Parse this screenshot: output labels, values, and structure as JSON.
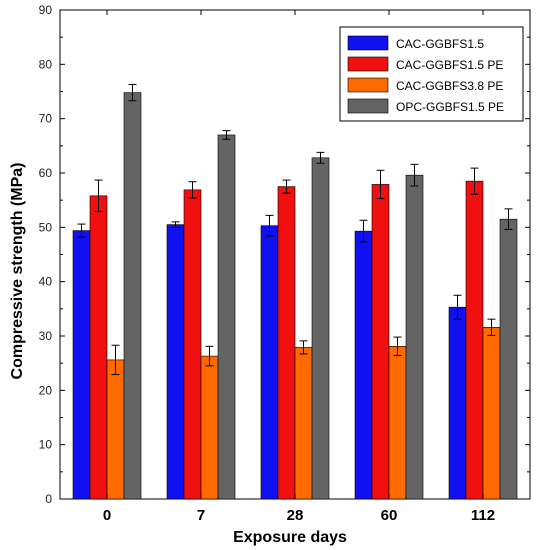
{
  "chart_data": {
    "type": "bar",
    "xlabel": "Exposure days",
    "ylabel": "Compressive strength (MPa)",
    "categories": [
      "0",
      "7",
      "28",
      "60",
      "112"
    ],
    "ylim": [
      0,
      90
    ],
    "yticks": [
      "0",
      "10",
      "20",
      "30",
      "40",
      "50",
      "60",
      "70",
      "80",
      "90"
    ],
    "grid": false,
    "legend_position": "top-right",
    "series": [
      {
        "name": "CAC-GGBFS1.5",
        "color": "#1010f0",
        "values": [
          49.4,
          50.5,
          50.3,
          49.3,
          35.3
        ],
        "errors": [
          1.2,
          0.5,
          1.9,
          2.0,
          2.2
        ]
      },
      {
        "name": "CAC-GGBFS1.5 PE",
        "color": "#f01010",
        "values": [
          55.8,
          56.9,
          57.5,
          57.9,
          58.5
        ],
        "errors": [
          2.9,
          1.5,
          1.2,
          2.6,
          2.4
        ]
      },
      {
        "name": "CAC-GGBFS3.8 PE",
        "color": "#ff6a00",
        "values": [
          25.6,
          26.3,
          27.9,
          28.1,
          31.6
        ],
        "errors": [
          2.7,
          1.8,
          1.2,
          1.7,
          1.5
        ]
      },
      {
        "name": "OPC-GGBFS1.5 PE",
        "color": "#646464",
        "values": [
          74.8,
          67.0,
          62.8,
          59.6,
          51.5
        ],
        "errors": [
          1.5,
          0.8,
          1.0,
          2.0,
          1.9
        ]
      }
    ]
  }
}
